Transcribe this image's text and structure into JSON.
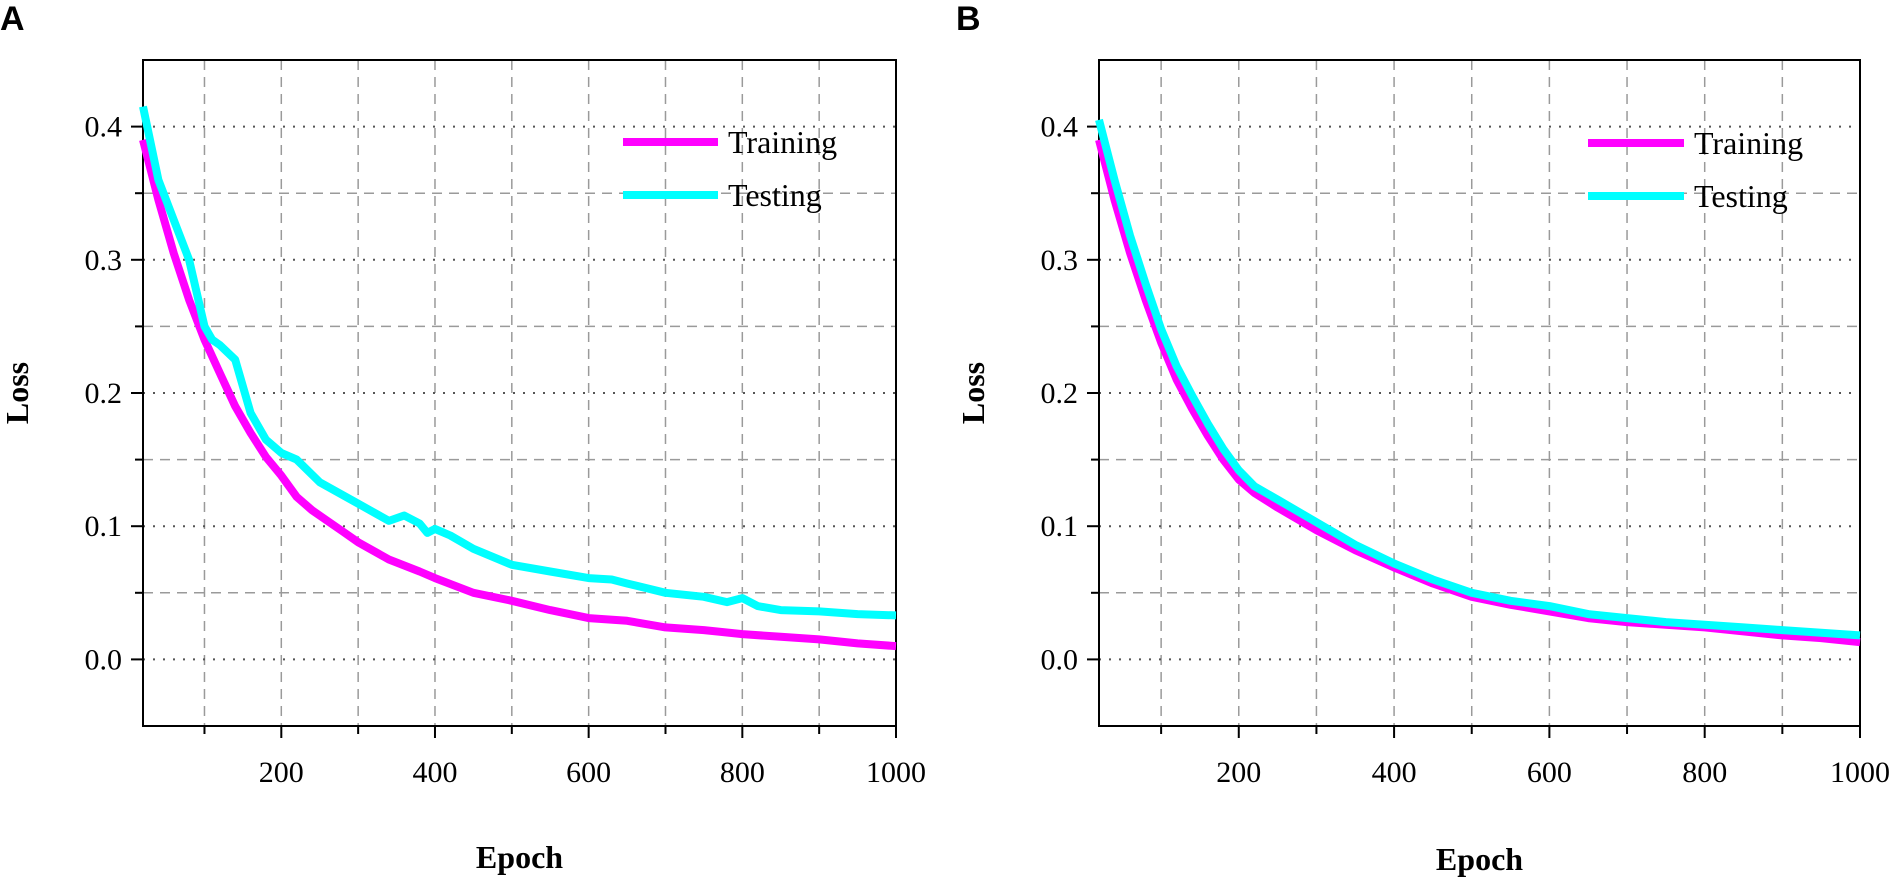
{
  "colors": {
    "training": "#ff00ff",
    "testing": "#00ffff"
  },
  "chart_data": [
    {
      "panel": "A",
      "type": "line",
      "xlabel": "Epoch",
      "ylabel": "Loss",
      "xlim": [
        20,
        1000
      ],
      "ylim": [
        -0.05,
        0.45
      ],
      "xticks": [
        200,
        400,
        600,
        800,
        1000
      ],
      "xtick_labels": [
        "200",
        "400",
        "600",
        "800",
        "1000"
      ],
      "yticks": [
        0.0,
        0.1,
        0.2,
        0.3,
        0.4
      ],
      "ytick_labels": [
        "0.0",
        "0.1",
        "0.2",
        "0.3",
        "0.4"
      ],
      "legend": "top-right",
      "grid": true,
      "series": [
        {
          "name": "Training",
          "x": [
            20,
            40,
            60,
            80,
            100,
            120,
            140,
            160,
            180,
            200,
            220,
            240,
            260,
            280,
            300,
            340,
            380,
            400,
            450,
            500,
            550,
            600,
            650,
            700,
            750,
            800,
            850,
            900,
            950,
            1000
          ],
          "y": [
            0.39,
            0.345,
            0.305,
            0.27,
            0.24,
            0.215,
            0.19,
            0.17,
            0.152,
            0.138,
            0.122,
            0.112,
            0.104,
            0.096,
            0.088,
            0.075,
            0.066,
            0.061,
            0.05,
            0.044,
            0.037,
            0.031,
            0.029,
            0.024,
            0.022,
            0.019,
            0.017,
            0.015,
            0.012,
            0.01
          ]
        },
        {
          "name": "Testing",
          "x": [
            20,
            40,
            60,
            80,
            100,
            110,
            120,
            140,
            160,
            180,
            200,
            220,
            250,
            300,
            340,
            360,
            380,
            390,
            400,
            420,
            450,
            500,
            550,
            600,
            630,
            650,
            700,
            750,
            780,
            800,
            820,
            850,
            900,
            950,
            1000
          ],
          "y": [
            0.415,
            0.36,
            0.33,
            0.3,
            0.25,
            0.24,
            0.236,
            0.225,
            0.185,
            0.165,
            0.155,
            0.15,
            0.133,
            0.117,
            0.104,
            0.108,
            0.102,
            0.095,
            0.098,
            0.093,
            0.083,
            0.071,
            0.066,
            0.061,
            0.06,
            0.057,
            0.05,
            0.047,
            0.043,
            0.046,
            0.04,
            0.037,
            0.036,
            0.034,
            0.033
          ]
        }
      ]
    },
    {
      "panel": "B",
      "type": "line",
      "xlabel": "Epoch",
      "ylabel": "Loss",
      "xlim": [
        20,
        1000
      ],
      "ylim": [
        -0.05,
        0.45
      ],
      "xticks": [
        200,
        400,
        600,
        800,
        1000
      ],
      "xtick_labels": [
        "200",
        "400",
        "600",
        "800",
        "1000"
      ],
      "yticks": [
        0.0,
        0.1,
        0.2,
        0.3,
        0.4
      ],
      "ytick_labels": [
        "0.0",
        "0.1",
        "0.2",
        "0.3",
        "0.4"
      ],
      "legend": "top-right",
      "grid": true,
      "series": [
        {
          "name": "Training",
          "x": [
            20,
            40,
            60,
            80,
            100,
            120,
            140,
            160,
            180,
            200,
            220,
            250,
            300,
            350,
            400,
            450,
            500,
            550,
            600,
            650,
            700,
            750,
            800,
            850,
            900,
            950,
            1000
          ],
          "y": [
            0.39,
            0.345,
            0.305,
            0.27,
            0.238,
            0.21,
            0.188,
            0.168,
            0.15,
            0.135,
            0.125,
            0.114,
            0.097,
            0.082,
            0.069,
            0.057,
            0.047,
            0.041,
            0.036,
            0.031,
            0.028,
            0.026,
            0.024,
            0.021,
            0.018,
            0.016,
            0.013
          ]
        },
        {
          "name": "Testing",
          "x": [
            20,
            40,
            60,
            80,
            100,
            120,
            140,
            160,
            180,
            200,
            220,
            250,
            300,
            350,
            400,
            450,
            500,
            550,
            600,
            650,
            700,
            750,
            800,
            850,
            900,
            950,
            1000
          ],
          "y": [
            0.405,
            0.36,
            0.318,
            0.282,
            0.248,
            0.22,
            0.198,
            0.177,
            0.158,
            0.142,
            0.13,
            0.12,
            0.103,
            0.086,
            0.072,
            0.06,
            0.05,
            0.044,
            0.04,
            0.034,
            0.031,
            0.028,
            0.026,
            0.024,
            0.022,
            0.02,
            0.018
          ]
        }
      ]
    }
  ]
}
